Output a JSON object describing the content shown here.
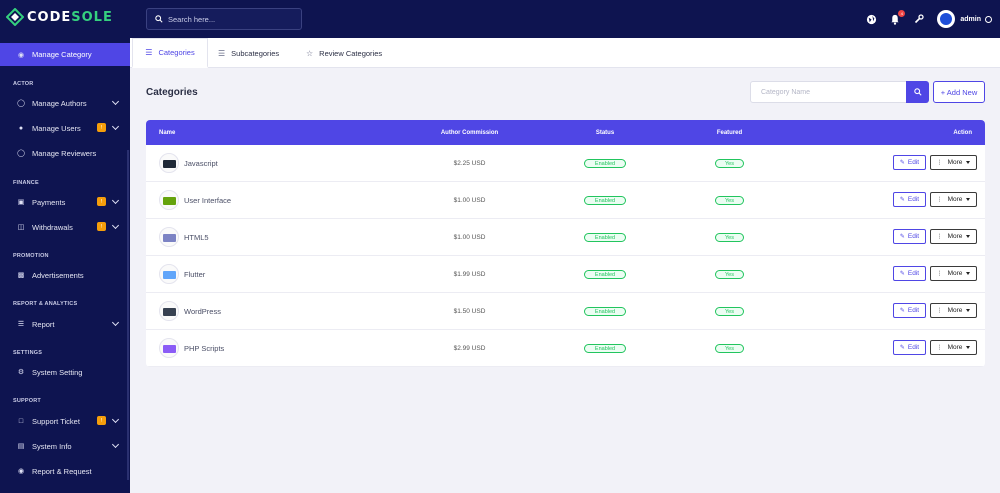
{
  "brand": {
    "name_left": "CODE",
    "name_right": "SOLE"
  },
  "header": {
    "search_placeholder": "Search here...",
    "notification_count": "4",
    "admin_name": "admin"
  },
  "sidebar": {
    "active_item": "Manage Category",
    "sections": [
      {
        "title": "ACTOR",
        "items": [
          "Manage Authors",
          "Manage Users",
          "Manage Reviewers"
        ]
      },
      {
        "title": "FINANCE",
        "items": [
          "Payments",
          "Withdrawals"
        ]
      },
      {
        "title": "PROMOTION",
        "items": [
          "Advertisements"
        ]
      },
      {
        "title": "REPORT & ANALYTICS",
        "items": [
          "Report"
        ]
      },
      {
        "title": "SETTINGS",
        "items": [
          "System Setting"
        ]
      },
      {
        "title": "SUPPORT",
        "items": [
          "Support Ticket",
          "System Info",
          "Report & Request"
        ]
      }
    ],
    "badge_glyph": "!"
  },
  "tabs": [
    {
      "label": "Categories"
    },
    {
      "label": "Subcategories"
    },
    {
      "label": "Review Categories"
    }
  ],
  "main": {
    "title": "Categories",
    "search_placeholder": "Category Name",
    "add_new_label": "+ Add New"
  },
  "table": {
    "headers": {
      "name": "Name",
      "commission": "Author Commission",
      "status": "Status",
      "featured": "Featured",
      "action": "Action"
    },
    "edit_label": "Edit",
    "more_label": "More",
    "rows": [
      {
        "name": "Javascript",
        "commission": "$2.25 USD",
        "status": "Enabled",
        "featured": "Yes",
        "thumb_color": "#1f2937"
      },
      {
        "name": "User Interface",
        "commission": "$1.00 USD",
        "status": "Enabled",
        "featured": "Yes",
        "thumb_color": "#65a30d"
      },
      {
        "name": "HTML5",
        "commission": "$1.00 USD",
        "status": "Enabled",
        "featured": "Yes",
        "thumb_color": "#7c83c4"
      },
      {
        "name": "Flutter",
        "commission": "$1.99 USD",
        "status": "Enabled",
        "featured": "Yes",
        "thumb_color": "#60a5fa"
      },
      {
        "name": "WordPress",
        "commission": "$1.50 USD",
        "status": "Enabled",
        "featured": "Yes",
        "thumb_color": "#374151"
      },
      {
        "name": "PHP Scripts",
        "commission": "$2.99 USD",
        "status": "Enabled",
        "featured": "Yes",
        "thumb_color": "#8b5cf6"
      }
    ]
  },
  "colors": {
    "sidebar_bg": "#0e1450",
    "accent": "#4f46e5",
    "success": "#22c55e",
    "badge": "#f59e0b",
    "alert": "#ef4444"
  }
}
